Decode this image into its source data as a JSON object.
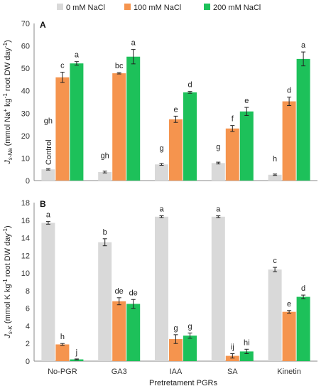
{
  "legend": [
    {
      "label": "0 mM NaCl",
      "color": "#d9d9d9"
    },
    {
      "label": "100 mM NaCl",
      "color": "#f5944e"
    },
    {
      "label": "200 mM NaCl",
      "color": "#1dc15a"
    }
  ],
  "xlabel": "Pretretament PGRs",
  "chart_data": [
    {
      "type": "bar",
      "panel_label": "A",
      "ylabel": "J s-Na (mmol Na+ kg-1 root DW day-1)",
      "ylabel_parts": {
        "main": "J",
        "sub": "s-Na",
        "rest": " (mmol Na",
        "sup": "+",
        "rest2": " kg",
        "sup2": "-1",
        "rest3": " root DW day",
        "sup3": "-1",
        "end": ")"
      },
      "ylim": [
        0,
        70
      ],
      "yticks": [
        0,
        10,
        20,
        30,
        40,
        50,
        60,
        70
      ],
      "categories": [
        "No-PGR",
        "GA3",
        "IAA",
        "SA",
        "Kinetin"
      ],
      "series": [
        {
          "name": "0 mM NaCl",
          "values": [
            5.0,
            3.8,
            7.2,
            7.8,
            2.6
          ],
          "errors": [
            0.3,
            0.4,
            0.4,
            0.4,
            0.3
          ],
          "letters": [
            "gh",
            "gh",
            "g",
            "g",
            "h"
          ]
        },
        {
          "name": "100 mM NaCl",
          "values": [
            46.0,
            47.8,
            27.3,
            23.2,
            35.3
          ],
          "errors": [
            2.3,
            0.3,
            1.4,
            1.3,
            1.9
          ],
          "letters": [
            "c",
            "bc",
            "e",
            "f",
            "d"
          ]
        },
        {
          "name": "200 mM NaCl",
          "values": [
            52.2,
            55.2,
            39.3,
            30.8,
            54.2
          ],
          "errors": [
            0.8,
            3.2,
            0.4,
            1.8,
            3.1
          ],
          "letters": [
            "a",
            "a",
            "d",
            "e",
            "a"
          ]
        }
      ],
      "annotation": "Control"
    },
    {
      "type": "bar",
      "panel_label": "B",
      "ylabel": "J s-K (mmol K kg-1 root DW day-1)",
      "ylabel_parts": {
        "main": "J",
        "sub": "s-K",
        "rest": " (mmol K kg",
        "sup": "-1",
        "rest2": " root DW day",
        "sup2": "-1",
        "end": ")"
      },
      "ylim": [
        0,
        18
      ],
      "yticks": [
        0,
        2,
        4,
        6,
        8,
        10,
        12,
        14,
        16,
        18
      ],
      "categories": [
        "No-PGR",
        "GA3",
        "IAA",
        "SA",
        "Kinetin"
      ],
      "series": [
        {
          "name": "0 mM NaCl",
          "values": [
            15.7,
            13.5,
            16.4,
            16.4,
            10.4
          ],
          "errors": [
            0.15,
            0.4,
            0.1,
            0.1,
            0.25
          ],
          "letters": [
            "a",
            "b",
            "a",
            "a",
            "c"
          ]
        },
        {
          "name": "100 mM NaCl",
          "values": [
            1.9,
            6.8,
            2.5,
            0.6,
            5.6
          ],
          "errors": [
            0.1,
            0.4,
            0.5,
            0.25,
            0.15
          ],
          "letters": [
            "h",
            "de",
            "g",
            "ij",
            "e"
          ]
        },
        {
          "name": "200 mM NaCl",
          "values": [
            0.2,
            6.5,
            2.9,
            1.1,
            7.3
          ],
          "errors": [
            0.05,
            0.5,
            0.3,
            0.25,
            0.2
          ],
          "letters": [
            "j",
            "de",
            "g",
            "hi",
            "d"
          ]
        }
      ]
    }
  ]
}
